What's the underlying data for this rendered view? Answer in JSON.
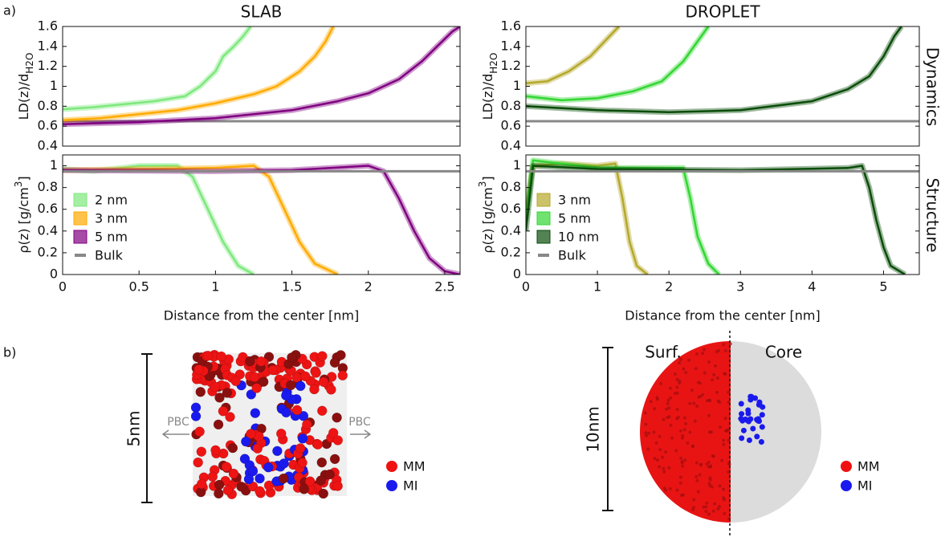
{
  "figure": {
    "panel_a": "a)",
    "panel_b": "b)",
    "row_top": "Dynamics",
    "row_bottom": "Structure",
    "slab": {
      "scale": "5nm",
      "pbc_left": "PBC",
      "pbc_right": "PBC",
      "legend": [
        "MM",
        "MI"
      ]
    },
    "droplet": {
      "scale": "10nm",
      "left": "Surf.",
      "right": "Core",
      "legend": [
        "MM",
        "MI"
      ]
    }
  },
  "chart_data": [
    {
      "type": "line",
      "title": "SLAB",
      "ylabel": {
        "main": "LD(z)/d",
        "sub": "H2O"
      },
      "xlim": [
        0,
        2.6
      ],
      "ylim": [
        0.4,
        1.6
      ],
      "yticks": [
        0.4,
        0.6,
        0.8,
        1,
        1.2,
        1.4,
        1.6
      ],
      "hline": {
        "value": 0.65,
        "color": "#888888"
      },
      "legend": false,
      "series": [
        {
          "name": "2 nm",
          "color": "#7de87d",
          "x": [
            0,
            0.2,
            0.4,
            0.6,
            0.8,
            0.9,
            1.0,
            1.05,
            1.12,
            1.18,
            1.23
          ],
          "values": [
            0.77,
            0.79,
            0.82,
            0.85,
            0.9,
            1.0,
            1.15,
            1.3,
            1.4,
            1.5,
            1.6
          ]
        },
        {
          "name": "3 nm",
          "color": "#ffaa00",
          "x": [
            0,
            0.25,
            0.5,
            0.75,
            1.0,
            1.25,
            1.4,
            1.55,
            1.65,
            1.72,
            1.77
          ],
          "values": [
            0.66,
            0.68,
            0.72,
            0.76,
            0.83,
            0.92,
            1.0,
            1.15,
            1.3,
            1.45,
            1.6
          ]
        },
        {
          "name": "5 nm",
          "color": "#800080",
          "x": [
            0,
            0.5,
            1,
            1.5,
            1.8,
            2.0,
            2.2,
            2.35,
            2.45,
            2.55,
            2.6
          ],
          "values": [
            0.62,
            0.64,
            0.68,
            0.76,
            0.85,
            0.93,
            1.07,
            1.25,
            1.4,
            1.55,
            1.6
          ]
        }
      ]
    },
    {
      "type": "line",
      "ylabel": {
        "main": "ρ(z) [g/cm",
        "sup": "3",
        "tail": "]"
      },
      "xlabel": "Distance from the center [nm]",
      "xlim": [
        0,
        2.6
      ],
      "ylim": [
        0,
        1.1
      ],
      "yticks": [
        0,
        0.2,
        0.4,
        0.6,
        0.8,
        1
      ],
      "xticks": [
        0,
        0.5,
        1,
        1.5,
        2,
        2.5
      ],
      "legend": true,
      "series": [
        {
          "name": "2 nm",
          "color": "#7de87d",
          "x": [
            0,
            0.2,
            0.5,
            0.75,
            0.85,
            0.95,
            1.05,
            1.15,
            1.25
          ],
          "values": [
            0.97,
            0.95,
            1.0,
            1.0,
            0.9,
            0.6,
            0.3,
            0.08,
            0
          ]
        },
        {
          "name": "3 nm",
          "color": "#ffaa00",
          "x": [
            0,
            0.5,
            1.0,
            1.25,
            1.35,
            1.45,
            1.55,
            1.65,
            1.8
          ],
          "values": [
            0.96,
            0.97,
            0.98,
            1.0,
            0.9,
            0.6,
            0.3,
            0.1,
            0
          ]
        },
        {
          "name": "5 nm",
          "color": "#800080",
          "x": [
            0,
            1,
            1.5,
            2.0,
            2.1,
            2.2,
            2.3,
            2.4,
            2.5,
            2.6
          ],
          "values": [
            0.96,
            0.95,
            0.96,
            1.0,
            0.95,
            0.7,
            0.4,
            0.15,
            0.03,
            0
          ]
        },
        {
          "name": "Bulk",
          "color": "#888888",
          "hline": 0.95
        }
      ]
    },
    {
      "type": "line",
      "title": "DROPLET",
      "ylabel": {
        "main": "LD(z)/d",
        "sub": "H2O"
      },
      "xlim": [
        0,
        5.5
      ],
      "ylim": [
        0.4,
        1.6
      ],
      "yticks": [
        0.4,
        0.6,
        0.8,
        1,
        1.2,
        1.4,
        1.6
      ],
      "hline": {
        "value": 0.65,
        "color": "#888888"
      },
      "legend": false,
      "series": [
        {
          "name": "3 nm",
          "color": "#b5a82a",
          "x": [
            0,
            0.3,
            0.6,
            0.9,
            1.1,
            1.3
          ],
          "values": [
            1.03,
            1.05,
            1.15,
            1.3,
            1.45,
            1.6
          ]
        },
        {
          "name": "5 nm",
          "color": "#33d633",
          "x": [
            0,
            0.5,
            1,
            1.5,
            1.9,
            2.2,
            2.4,
            2.55
          ],
          "values": [
            0.9,
            0.86,
            0.88,
            0.95,
            1.05,
            1.25,
            1.45,
            1.6
          ]
        },
        {
          "name": "10 nm",
          "color": "#0a4d0a",
          "x": [
            0,
            1,
            2,
            3,
            4,
            4.5,
            4.8,
            5.0,
            5.15,
            5.25
          ],
          "values": [
            0.8,
            0.76,
            0.74,
            0.76,
            0.85,
            0.97,
            1.1,
            1.3,
            1.5,
            1.6
          ]
        }
      ]
    },
    {
      "type": "line",
      "ylabel": {
        "main": "ρ(z) [g/cm",
        "sup": "3",
        "tail": "]"
      },
      "xlabel": "Distance from the center [nm]",
      "xlim": [
        0,
        5.5
      ],
      "ylim": [
        0,
        1.1
      ],
      "yticks": [
        0,
        0.2,
        0.4,
        0.6,
        0.8,
        1
      ],
      "xticks": [
        0,
        1,
        2,
        3,
        4,
        5
      ],
      "legend": true,
      "series": [
        {
          "name": "3 nm",
          "color": "#b5a82a",
          "x": [
            0,
            0.1,
            0.5,
            1.0,
            1.25,
            1.35,
            1.45,
            1.55,
            1.7
          ],
          "values": [
            0.6,
            1.0,
            1.02,
            1.0,
            1.02,
            0.7,
            0.3,
            0.08,
            0
          ]
        },
        {
          "name": "5 nm",
          "color": "#33d633",
          "x": [
            0,
            0.1,
            1,
            2,
            2.2,
            2.3,
            2.4,
            2.55,
            2.7
          ],
          "values": [
            0.5,
            1.05,
            0.98,
            0.98,
            0.98,
            0.7,
            0.35,
            0.1,
            0
          ]
        },
        {
          "name": "10 nm",
          "color": "#0a4d0a",
          "x": [
            0,
            0.1,
            1,
            3,
            4.5,
            4.7,
            4.8,
            4.9,
            5.0,
            5.1,
            5.3
          ],
          "values": [
            0.4,
            1.0,
            0.97,
            0.96,
            0.98,
            1.0,
            0.8,
            0.5,
            0.25,
            0.08,
            0
          ]
        },
        {
          "name": "Bulk",
          "color": "#888888",
          "hline": 0.95
        }
      ]
    }
  ]
}
